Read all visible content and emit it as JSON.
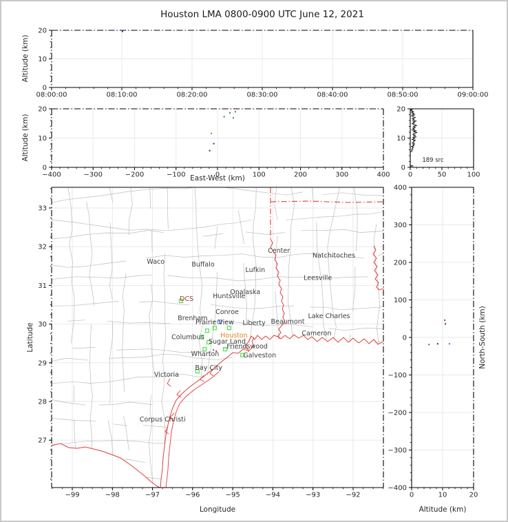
{
  "title": "Houston LMA 0800-0900 UTC June 12, 2021",
  "labels": {
    "altitude_y1": "Altitude (km)",
    "altitude_y2": "Altitude (km)",
    "east_west": "East-West (km)",
    "latitude": "Latitude",
    "longitude": "Longitude",
    "altitude_x": "Altitude (km)",
    "north_south": "North-South (km)"
  },
  "chart_data": {
    "type": "scatter",
    "title": "Houston LMA 0800-0900 UTC June 12, 2021",
    "panels": {
      "time_height": {
        "x_domain": [
          0,
          3600
        ],
        "y_domain": [
          0,
          20
        ],
        "x_ticks": {
          "values": [
            0,
            600,
            1200,
            1800,
            2400,
            3000,
            3600
          ],
          "labels": [
            "08:00:00",
            "08:10:00",
            "08:20:00",
            "08:30:00",
            "08:40:00",
            "08:50:00",
            "09:00:00"
          ]
        },
        "y_ticks": {
          "values": [
            0,
            10,
            20
          ],
          "labels": [
            "0",
            "10",
            "20"
          ]
        },
        "points": [
          {
            "x": 605,
            "y": 19.6,
            "color": "#1040dd"
          }
        ]
      },
      "ew_height": {
        "x_domain": [
          -400,
          400
        ],
        "y_domain": [
          0,
          20
        ],
        "x_ticks": {
          "values": [
            -400,
            -300,
            -200,
            -100,
            0,
            100,
            200,
            300,
            400
          ],
          "labels": [
            "−400",
            "−300",
            "−200",
            "−100",
            "0",
            "100",
            "200",
            "300",
            "400"
          ]
        },
        "y_ticks": {
          "values": [
            0,
            10,
            20
          ],
          "labels": [
            "0",
            "10",
            "20"
          ]
        },
        "points": [
          {
            "x": 16,
            "y": 17.3,
            "color": "#2e7d7d"
          },
          {
            "x": 30,
            "y": 18.6,
            "color": "#2e7d7d"
          },
          {
            "x": 43,
            "y": 19.0,
            "color": "#cc4a22"
          },
          {
            "x": 38,
            "y": 16.9,
            "color": "#2e7d7d"
          },
          {
            "x": -15,
            "y": 11.6,
            "color": "#3fae3f"
          },
          {
            "x": -9,
            "y": 8.1,
            "color": "#26357f"
          },
          {
            "x": -19,
            "y": 5.7,
            "color": "#3a2a7a"
          }
        ]
      },
      "alt_histogram": {
        "x_domain": [
          0,
          100
        ],
        "y_domain": [
          0,
          20
        ],
        "x_ticks": {
          "values": [
            0,
            50,
            100
          ],
          "labels": [
            "0",
            "50",
            "100"
          ]
        },
        "y_ticks": {
          "values": [
            0,
            10,
            20
          ],
          "labels": [
            "0",
            "10",
            "20"
          ]
        },
        "annotation": "189 src",
        "profile": [
          [
            0,
            20
          ],
          [
            3,
            19.7
          ],
          [
            1,
            19.4
          ],
          [
            5,
            19.1
          ],
          [
            2,
            18.8
          ],
          [
            6,
            18.5
          ],
          [
            3,
            18.2
          ],
          [
            7,
            17.9
          ],
          [
            2,
            17.6
          ],
          [
            5,
            17.3
          ],
          [
            8,
            17.0
          ],
          [
            3,
            16.7
          ],
          [
            6,
            16.4
          ],
          [
            4,
            16.1
          ],
          [
            9,
            15.8
          ],
          [
            4,
            15.5
          ],
          [
            7,
            15.2
          ],
          [
            3,
            14.9
          ],
          [
            6,
            14.6
          ],
          [
            10,
            14.3
          ],
          [
            5,
            14.0
          ],
          [
            8,
            13.7
          ],
          [
            4,
            13.4
          ],
          [
            7,
            13.1
          ],
          [
            3,
            12.8
          ],
          [
            9,
            12.5
          ],
          [
            5,
            12.2
          ],
          [
            11,
            11.9
          ],
          [
            6,
            11.6
          ],
          [
            4,
            11.3
          ],
          [
            8,
            11.0
          ],
          [
            5,
            10.7
          ],
          [
            9,
            10.4
          ],
          [
            4,
            10.1
          ],
          [
            7,
            9.8
          ],
          [
            3,
            9.5
          ],
          [
            8,
            9.2
          ],
          [
            5,
            8.9
          ],
          [
            6,
            8.6
          ],
          [
            3,
            8.3
          ],
          [
            7,
            8.0
          ],
          [
            4,
            7.7
          ],
          [
            6,
            7.4
          ],
          [
            2,
            7.1
          ],
          [
            5,
            6.8
          ],
          [
            3,
            6.5
          ],
          [
            4,
            6.2
          ],
          [
            2,
            5.9
          ],
          [
            3,
            5.6
          ],
          [
            1,
            5.3
          ],
          [
            0,
            5.2
          ]
        ],
        "profile2": [
          [
            0,
            0.6
          ],
          [
            5,
            0.5
          ],
          [
            0,
            0.4
          ]
        ]
      },
      "map": {
        "x_domain": [
          -99.515,
          -91.245
        ],
        "y_domain": [
          25.776,
          33.534
        ],
        "x_ticks": {
          "values": [
            -99,
            -98,
            -97,
            -96,
            -95,
            -94,
            -93,
            -92
          ],
          "labels": [
            "−99",
            "−98",
            "−97",
            "−96",
            "−95",
            "−94",
            "−93",
            "−92"
          ]
        },
        "y_ticks": {
          "values": [
            33,
            32,
            31,
            30,
            29,
            28,
            27
          ],
          "labels": [
            "33",
            "32",
            "31",
            "30",
            "29",
            "28",
            "27"
          ]
        },
        "cities": [
          {
            "name": "Waco",
            "lon": -96.92,
            "lat": 31.61
          },
          {
            "name": "Buffalo",
            "lon": -95.74,
            "lat": 31.54
          },
          {
            "name": "Center",
            "lon": -93.85,
            "lat": 31.9
          },
          {
            "name": "Natchitoches",
            "lon": -92.48,
            "lat": 31.77
          },
          {
            "name": "Lufkin",
            "lon": -94.44,
            "lat": 31.4
          },
          {
            "name": "Leesville",
            "lon": -92.88,
            "lat": 31.19
          },
          {
            "name": "Onalaska",
            "lon": -94.69,
            "lat": 30.83
          },
          {
            "name": "Huntsville",
            "lon": -95.09,
            "lat": 30.72
          },
          {
            "name": "Conroe",
            "lon": -95.14,
            "lat": 30.31
          },
          {
            "name": "Brenham",
            "lon": -96.0,
            "lat": 30.15
          },
          {
            "name": "Prairie View",
            "lon": -95.45,
            "lat": 30.05
          },
          {
            "name": "Liberty",
            "lon": -94.47,
            "lat": 30.03
          },
          {
            "name": "Beaumont",
            "lon": -93.63,
            "lat": 30.06
          },
          {
            "name": "Lake Charles",
            "lon": -92.6,
            "lat": 30.21
          },
          {
            "name": "Cameron",
            "lon": -92.91,
            "lat": 29.76
          },
          {
            "name": "Columbus",
            "lon": -96.12,
            "lat": 29.66
          },
          {
            "name": "Houston",
            "lon": -94.97,
            "lat": 29.71,
            "color": "#e8821e"
          },
          {
            "name": "Sugar Land",
            "lon": -95.14,
            "lat": 29.55
          },
          {
            "name": "Friendswood",
            "lon": -94.64,
            "lat": 29.42
          },
          {
            "name": "Wharton",
            "lon": -95.69,
            "lat": 29.23
          },
          {
            "name": "Galveston",
            "lon": -94.33,
            "lat": 29.19
          },
          {
            "name": "Bay City",
            "lon": -95.6,
            "lat": 28.87
          },
          {
            "name": "Victoria",
            "lon": -96.65,
            "lat": 28.69
          },
          {
            "name": "Corpus Christi",
            "lon": -96.75,
            "lat": 27.54
          },
          {
            "name": "DCS",
            "lon": -96.15,
            "lat": 30.65,
            "color": "#a03939"
          }
        ],
        "stations": [
          {
            "lon": -96.29,
            "lat": 30.6,
            "color": "#4ce24c"
          },
          {
            "lon": -95.45,
            "lat": 29.9,
            "color": "#4ce24c"
          },
          {
            "lon": -95.09,
            "lat": 29.9,
            "color": "#4ce24c"
          },
          {
            "lon": -95.64,
            "lat": 29.83,
            "color": "#4ce24c"
          },
          {
            "lon": -95.77,
            "lat": 29.67,
            "color": "#4ce24c"
          },
          {
            "lon": -95.6,
            "lat": 29.53,
            "color": "#4ce24c"
          },
          {
            "lon": -95.7,
            "lat": 29.35,
            "color": "#4ce24c"
          },
          {
            "lon": -95.19,
            "lat": 29.35,
            "color": "#4ce24c"
          },
          {
            "lon": -94.76,
            "lat": 29.2,
            "color": "#4ce24c"
          },
          {
            "lon": -95.88,
            "lat": 28.78,
            "color": "#4ce24c"
          },
          {
            "lon": -95.33,
            "lat": 30.06,
            "color": "#4d94e8"
          }
        ],
        "points": [
          {
            "lon": -95.41,
            "lat": 29.3,
            "color": "#cc2222"
          },
          {
            "lon": -95.48,
            "lat": 29.33,
            "color": "#3366cc"
          }
        ]
      },
      "ns_height": {
        "x_domain": [
          0,
          20
        ],
        "y_domain": [
          -400,
          400
        ],
        "x_ticks": {
          "values": [
            0,
            10,
            20
          ],
          "labels": [
            "0",
            "10",
            "20"
          ]
        },
        "y_ticks": {
          "values": [
            400,
            300,
            200,
            100,
            0,
            -100,
            -200,
            -300,
            -400
          ],
          "labels": [
            "400",
            "300",
            "200",
            "100",
            "0",
            "−100",
            "−200",
            "−300",
            "−400"
          ]
        },
        "points": [
          {
            "x": 10.7,
            "y": 46,
            "color": "#cc2222"
          },
          {
            "x": 10.9,
            "y": 36,
            "color": "#26357f"
          },
          {
            "x": 5.6,
            "y": -19,
            "color": "#7a3fae"
          },
          {
            "x": 8.4,
            "y": -17,
            "color": "#26264d"
          },
          {
            "x": 12.2,
            "y": -17,
            "color": "#3377bb"
          }
        ]
      }
    }
  }
}
